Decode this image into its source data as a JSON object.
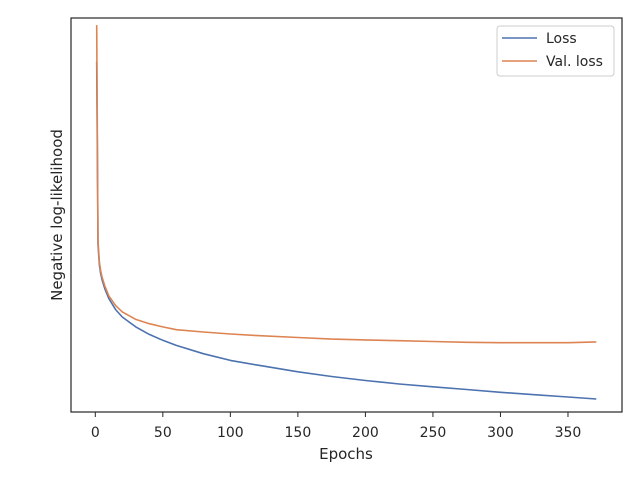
{
  "chart_data": {
    "type": "line",
    "title": "",
    "xlabel": "Epochs",
    "ylabel": "Negative log-likelihood",
    "xlim": [
      -18,
      390
    ],
    "ylim": [
      0,
      100
    ],
    "x_ticks": [
      0,
      50,
      100,
      150,
      200,
      250,
      300,
      350
    ],
    "x_tick_labels": [
      "0",
      "50",
      "100",
      "150",
      "200",
      "250",
      "300",
      "350"
    ],
    "y_ticks_shown": false,
    "grid": false,
    "legend": {
      "placement": "top-right"
    },
    "series": [
      {
        "name": "Loss",
        "color": "#4c72b0",
        "x": [
          1,
          2,
          3,
          4,
          5,
          7,
          10,
          15,
          20,
          30,
          40,
          50,
          60,
          80,
          100,
          120,
          150,
          175,
          200,
          225,
          250,
          275,
          300,
          325,
          350,
          371
        ],
        "values": [
          88.9,
          42.5,
          37.3,
          35.1,
          33.5,
          31.3,
          28.8,
          26.0,
          24.1,
          21.6,
          19.7,
          18.2,
          16.9,
          14.8,
          13.1,
          11.9,
          10.2,
          9.0,
          8.0,
          7.1,
          6.4,
          5.7,
          5.0,
          4.4,
          3.8,
          3.3
        ]
      },
      {
        "name": "Val. loss",
        "color": "#dd8452",
        "x": [
          1,
          2,
          3,
          4,
          5,
          7,
          10,
          15,
          20,
          30,
          40,
          50,
          60,
          80,
          100,
          120,
          150,
          175,
          200,
          225,
          250,
          275,
          300,
          325,
          350,
          371
        ],
        "values": [
          98.2,
          43.5,
          38.0,
          35.8,
          34.2,
          32.0,
          29.5,
          27.0,
          25.4,
          23.5,
          22.4,
          21.6,
          20.9,
          20.3,
          19.8,
          19.4,
          18.9,
          18.5,
          18.3,
          18.1,
          17.9,
          17.7,
          17.6,
          17.6,
          17.6,
          17.8
        ]
      }
    ]
  }
}
